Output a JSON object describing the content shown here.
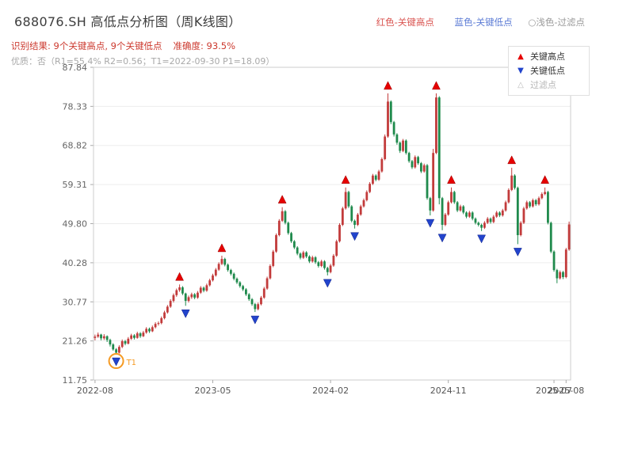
{
  "header": {
    "title": "688076.SH 高低点分析图（周K线图）",
    "legend_high": "红色-关键高点",
    "legend_low": "蓝色-关键低点",
    "legend_filter": "○浅色-过滤点",
    "result_text": "识别结果: 9个关键高点, 9个关键低点",
    "accuracy_text": "准确度: 93.5%",
    "quality_text": "优质：否（R1=55.4%  R2=0.56；T1=2022-09-30 P1=18.09）"
  },
  "legend_box": {
    "items": [
      {
        "label": "关键高点",
        "marker": "triangle-up-red"
      },
      {
        "label": "关键低点",
        "marker": "triangle-down-blue"
      },
      {
        "label": "过滤点",
        "marker": "triangle-hollow-gray"
      }
    ]
  },
  "chart_data": {
    "type": "candlestick",
    "title": "688076.SH 高低点分析图（周K线图）",
    "period": "weekly",
    "ylim": [
      11.75,
      87.84
    ],
    "y_ticks": [
      87.84,
      78.33,
      68.82,
      59.31,
      49.8,
      40.28,
      30.77,
      21.26,
      11.75
    ],
    "x_ticks": [
      {
        "label": "2022-08",
        "index": 0
      },
      {
        "label": "2023-05",
        "index": 39
      },
      {
        "label": "2024-02",
        "index": 78
      },
      {
        "label": "2024-11",
        "index": 117
      },
      {
        "label": "2025-07",
        "index": 152
      },
      {
        "label": "2025-08",
        "index": 156
      }
    ],
    "grid": "horizontal",
    "up_color": "#c23b3b",
    "down_color": "#1f8a4c",
    "high_marker_color": "#e60000",
    "low_marker_color": "#2244cc",
    "candles_ohlc": [
      [
        22.0,
        22.8,
        21.4,
        22.3
      ],
      [
        22.3,
        23.3,
        22.0,
        22.8
      ],
      [
        22.8,
        23.0,
        21.4,
        21.9
      ],
      [
        21.9,
        22.9,
        21.5,
        22.4
      ],
      [
        22.4,
        22.6,
        21.0,
        21.5
      ],
      [
        21.5,
        21.8,
        19.9,
        20.4
      ],
      [
        20.4,
        20.7,
        18.9,
        19.2
      ],
      [
        19.2,
        19.5,
        18.1,
        18.4
      ],
      [
        18.4,
        20.2,
        18.2,
        19.8
      ],
      [
        19.8,
        21.6,
        19.5,
        21.2
      ],
      [
        21.2,
        21.5,
        20.2,
        20.6
      ],
      [
        20.6,
        22.2,
        20.4,
        21.8
      ],
      [
        21.8,
        23.0,
        21.5,
        22.6
      ],
      [
        22.6,
        22.9,
        21.6,
        22.0
      ],
      [
        22.0,
        23.5,
        21.8,
        23.1
      ],
      [
        23.1,
        23.4,
        22.0,
        22.4
      ],
      [
        22.4,
        23.7,
        22.2,
        23.3
      ],
      [
        23.3,
        24.6,
        23.0,
        24.2
      ],
      [
        24.2,
        24.5,
        23.2,
        23.6
      ],
      [
        23.6,
        25.0,
        23.4,
        24.6
      ],
      [
        24.6,
        25.8,
        24.3,
        25.4
      ],
      [
        25.4,
        26.0,
        25.0,
        25.6
      ],
      [
        25.6,
        27.2,
        25.3,
        26.8
      ],
      [
        26.8,
        28.6,
        26.5,
        28.2
      ],
      [
        28.2,
        30.0,
        27.9,
        29.6
      ],
      [
        29.6,
        31.4,
        29.3,
        31.0
      ],
      [
        31.0,
        32.8,
        30.6,
        32.4
      ],
      [
        32.4,
        34.0,
        32.0,
        33.6
      ],
      [
        33.6,
        35.0,
        33.2,
        34.3
      ],
      [
        34.3,
        34.6,
        32.4,
        32.8
      ],
      [
        32.8,
        33.0,
        29.8,
        31.0
      ],
      [
        31.0,
        32.3,
        30.6,
        31.9
      ],
      [
        31.9,
        33.0,
        31.5,
        32.6
      ],
      [
        32.6,
        32.9,
        31.4,
        31.8
      ],
      [
        31.8,
        33.4,
        31.5,
        33.0
      ],
      [
        33.0,
        34.6,
        32.7,
        34.2
      ],
      [
        34.2,
        34.5,
        33.1,
        33.5
      ],
      [
        33.5,
        35.2,
        33.2,
        34.8
      ],
      [
        34.8,
        36.4,
        34.5,
        36.0
      ],
      [
        36.0,
        37.6,
        35.7,
        37.2
      ],
      [
        37.2,
        39.0,
        36.9,
        38.6
      ],
      [
        38.6,
        40.4,
        38.3,
        40.0
      ],
      [
        40.0,
        42.0,
        39.7,
        41.2
      ],
      [
        41.2,
        41.5,
        39.4,
        39.8
      ],
      [
        39.8,
        40.1,
        38.1,
        38.5
      ],
      [
        38.5,
        38.8,
        37.2,
        37.6
      ],
      [
        37.6,
        37.9,
        36.0,
        36.4
      ],
      [
        36.4,
        36.7,
        35.1,
        35.5
      ],
      [
        35.5,
        35.8,
        34.2,
        34.6
      ],
      [
        34.6,
        34.9,
        33.4,
        33.8
      ],
      [
        33.8,
        34.1,
        32.2,
        32.6
      ],
      [
        32.6,
        32.9,
        31.0,
        31.4
      ],
      [
        31.4,
        31.7,
        29.8,
        30.2
      ],
      [
        30.2,
        30.5,
        28.3,
        29.0
      ],
      [
        29.0,
        30.6,
        28.7,
        30.2
      ],
      [
        30.2,
        32.2,
        29.9,
        31.8
      ],
      [
        31.8,
        34.4,
        31.5,
        34.0
      ],
      [
        34.0,
        36.9,
        33.7,
        36.5
      ],
      [
        36.5,
        39.9,
        36.2,
        39.5
      ],
      [
        39.5,
        43.4,
        39.2,
        43.0
      ],
      [
        43.0,
        47.4,
        42.7,
        47.0
      ],
      [
        47.0,
        50.9,
        46.7,
        50.5
      ],
      [
        50.5,
        53.8,
        50.2,
        52.8
      ],
      [
        52.8,
        53.1,
        49.6,
        50.0
      ],
      [
        50.0,
        50.3,
        47.1,
        47.5
      ],
      [
        47.5,
        47.8,
        45.1,
        45.5
      ],
      [
        45.5,
        45.8,
        43.6,
        44.0
      ],
      [
        44.0,
        44.3,
        42.1,
        42.5
      ],
      [
        42.5,
        42.8,
        41.1,
        41.5
      ],
      [
        41.5,
        43.2,
        41.2,
        42.8
      ],
      [
        42.8,
        43.1,
        41.4,
        41.8
      ],
      [
        41.8,
        42.1,
        40.2,
        40.6
      ],
      [
        40.6,
        42.0,
        40.3,
        41.6
      ],
      [
        41.6,
        41.9,
        40.0,
        40.4
      ],
      [
        40.4,
        40.7,
        39.1,
        39.5
      ],
      [
        39.5,
        41.0,
        39.2,
        40.6
      ],
      [
        40.6,
        40.9,
        38.6,
        39.0
      ],
      [
        39.0,
        39.3,
        37.2,
        38.0
      ],
      [
        38.0,
        40.0,
        37.7,
        39.6
      ],
      [
        39.6,
        42.4,
        39.3,
        42.0
      ],
      [
        42.0,
        45.9,
        41.7,
        45.5
      ],
      [
        45.5,
        49.9,
        45.2,
        49.5
      ],
      [
        49.5,
        53.9,
        49.2,
        53.5
      ],
      [
        53.5,
        58.6,
        53.2,
        57.5
      ],
      [
        57.5,
        57.8,
        53.6,
        54.0
      ],
      [
        54.0,
        54.3,
        50.1,
        50.5
      ],
      [
        50.5,
        50.8,
        48.6,
        49.5
      ],
      [
        49.5,
        52.4,
        49.2,
        52.0
      ],
      [
        52.0,
        54.4,
        51.7,
        54.0
      ],
      [
        54.0,
        55.9,
        53.7,
        55.5
      ],
      [
        55.5,
        57.9,
        55.2,
        57.5
      ],
      [
        57.5,
        59.9,
        57.2,
        59.5
      ],
      [
        59.5,
        61.9,
        59.2,
        61.5
      ],
      [
        61.5,
        61.8,
        60.1,
        60.5
      ],
      [
        60.5,
        62.9,
        60.2,
        62.5
      ],
      [
        62.5,
        65.9,
        62.2,
        65.5
      ],
      [
        65.5,
        71.5,
        65.2,
        71.0
      ],
      [
        71.0,
        81.5,
        70.7,
        79.5
      ],
      [
        79.5,
        79.8,
        74.0,
        74.5
      ],
      [
        74.5,
        74.8,
        71.0,
        71.5
      ],
      [
        71.5,
        71.8,
        69.0,
        69.5
      ],
      [
        69.5,
        69.8,
        67.0,
        67.5
      ],
      [
        67.5,
        70.4,
        67.2,
        70.0
      ],
      [
        70.0,
        70.3,
        66.6,
        67.0
      ],
      [
        67.0,
        67.3,
        64.6,
        65.0
      ],
      [
        65.0,
        65.3,
        63.1,
        63.5
      ],
      [
        63.5,
        66.4,
        63.2,
        66.0
      ],
      [
        66.0,
        66.3,
        64.1,
        64.5
      ],
      [
        64.5,
        64.8,
        62.1,
        62.5
      ],
      [
        62.5,
        64.4,
        62.2,
        64.0
      ],
      [
        64.0,
        64.3,
        55.6,
        56.0
      ],
      [
        56.0,
        56.3,
        51.8,
        53.0
      ],
      [
        53.0,
        68.0,
        52.7,
        67.0
      ],
      [
        67.0,
        81.5,
        66.7,
        80.5
      ],
      [
        80.5,
        80.8,
        54.5,
        56.0
      ],
      [
        56.0,
        56.3,
        48.2,
        49.5
      ],
      [
        49.5,
        52.4,
        49.2,
        52.0
      ],
      [
        52.0,
        55.4,
        51.7,
        55.0
      ],
      [
        55.0,
        58.6,
        54.7,
        57.5
      ],
      [
        57.5,
        57.8,
        54.6,
        55.0
      ],
      [
        55.0,
        55.3,
        52.6,
        53.0
      ],
      [
        53.0,
        54.4,
        52.7,
        54.0
      ],
      [
        54.0,
        54.3,
        52.1,
        52.5
      ],
      [
        52.5,
        52.8,
        51.1,
        51.5
      ],
      [
        51.5,
        52.9,
        51.2,
        52.5
      ],
      [
        52.5,
        52.8,
        50.6,
        51.0
      ],
      [
        51.0,
        51.3,
        49.6,
        50.0
      ],
      [
        50.0,
        50.3,
        49.1,
        49.5
      ],
      [
        49.5,
        49.8,
        48.0,
        48.8
      ],
      [
        48.8,
        50.4,
        48.5,
        50.0
      ],
      [
        50.0,
        51.4,
        49.7,
        51.0
      ],
      [
        51.0,
        51.3,
        49.8,
        50.2
      ],
      [
        50.2,
        51.9,
        49.9,
        51.5
      ],
      [
        51.5,
        52.9,
        51.2,
        52.5
      ],
      [
        52.5,
        52.8,
        51.4,
        51.8
      ],
      [
        51.8,
        53.4,
        51.5,
        53.0
      ],
      [
        53.0,
        55.4,
        52.7,
        55.0
      ],
      [
        55.0,
        58.4,
        54.7,
        58.0
      ],
      [
        58.0,
        63.4,
        57.7,
        61.5
      ],
      [
        61.5,
        61.8,
        58.1,
        58.5
      ],
      [
        58.5,
        58.8,
        44.8,
        47.0
      ],
      [
        47.0,
        50.4,
        46.7,
        50.0
      ],
      [
        50.0,
        53.9,
        49.7,
        53.5
      ],
      [
        53.5,
        55.4,
        53.2,
        55.0
      ],
      [
        55.0,
        55.3,
        53.6,
        54.0
      ],
      [
        54.0,
        55.9,
        53.7,
        55.5
      ],
      [
        55.5,
        55.8,
        54.1,
        54.5
      ],
      [
        54.5,
        56.4,
        54.2,
        56.0
      ],
      [
        56.0,
        57.4,
        55.7,
        57.0
      ],
      [
        57.0,
        58.6,
        56.7,
        57.5
      ],
      [
        57.5,
        57.8,
        49.6,
        50.0
      ],
      [
        50.0,
        50.3,
        42.6,
        43.0
      ],
      [
        43.0,
        43.3,
        38.1,
        38.5
      ],
      [
        38.5,
        38.8,
        35.3,
        36.5
      ],
      [
        36.5,
        38.4,
        36.2,
        38.0
      ],
      [
        38.0,
        38.3,
        36.3,
        36.8
      ],
      [
        36.8,
        43.9,
        36.5,
        43.5
      ],
      [
        43.5,
        50.3,
        43.2,
        49.6
      ]
    ],
    "key_highs": [
      {
        "index": 28,
        "price": 35.0
      },
      {
        "index": 42,
        "price": 42.0
      },
      {
        "index": 62,
        "price": 53.8
      },
      {
        "index": 83,
        "price": 58.6
      },
      {
        "index": 97,
        "price": 81.5
      },
      {
        "index": 113,
        "price": 81.5
      },
      {
        "index": 118,
        "price": 58.6
      },
      {
        "index": 138,
        "price": 63.4
      },
      {
        "index": 149,
        "price": 58.6
      }
    ],
    "key_lows": [
      {
        "index": 7,
        "price": 18.1
      },
      {
        "index": 30,
        "price": 29.8
      },
      {
        "index": 53,
        "price": 28.3
      },
      {
        "index": 77,
        "price": 37.2
      },
      {
        "index": 86,
        "price": 48.6
      },
      {
        "index": 111,
        "price": 51.8
      },
      {
        "index": 115,
        "price": 48.2
      },
      {
        "index": 128,
        "price": 48.0
      },
      {
        "index": 140,
        "price": 44.8
      }
    ],
    "annotation": {
      "index": 7,
      "price": 18.1,
      "label": "T1",
      "color": "#f59a23"
    }
  }
}
